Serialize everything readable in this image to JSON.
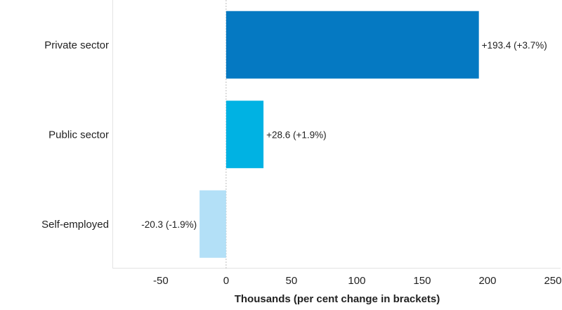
{
  "chart_data": {
    "type": "bar",
    "orientation": "horizontal",
    "title": "",
    "xlabel": "Thousands (per cent change in brackets)",
    "ylabel": "",
    "categories": [
      "Private sector",
      "Public sector",
      "Self-employed"
    ],
    "values": [
      193.4,
      28.6,
      -20.3
    ],
    "data_labels": [
      "+193.4 (+3.7%)",
      "+28.6 (+1.9%)",
      "-20.3 (-1.9%)"
    ],
    "colors": [
      "#0579c2",
      "#00b2e3",
      "#b3e0f7"
    ],
    "xlim": [
      -87,
      257
    ],
    "xticks": [
      -50,
      0,
      50,
      100,
      150,
      200,
      250
    ],
    "xtick_labels": [
      "-50",
      "0",
      "50",
      "100",
      "150",
      "200",
      "250"
    ],
    "grid": false,
    "legend": "none"
  }
}
